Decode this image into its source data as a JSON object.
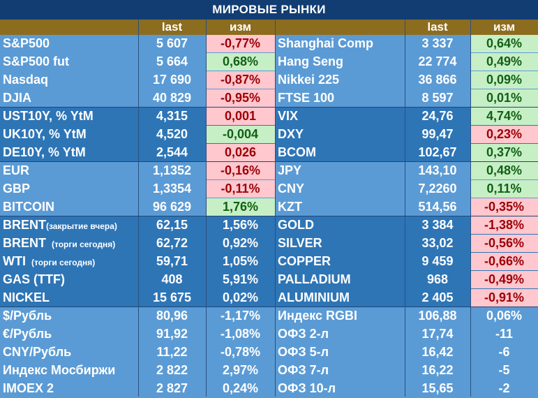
{
  "title": "МИРОВЫЕ РЫНКИ",
  "headers": {
    "last": "last",
    "change": "изм"
  },
  "rows": [
    {
      "band": "lite",
      "l": {
        "name": "S&P500",
        "last": "5 607",
        "chg": "-0,77%",
        "t": "neg"
      },
      "r": {
        "name": "Shanghai Comp",
        "last": "3 337",
        "chg": "0,64%",
        "t": "pos"
      }
    },
    {
      "band": "lite",
      "l": {
        "name": "S&P500 fut",
        "last": "5 664",
        "chg": "0,68%",
        "t": "pos"
      },
      "r": {
        "name": "Hang Seng",
        "last": "22 774",
        "chg": "0,49%",
        "t": "pos"
      }
    },
    {
      "band": "lite",
      "l": {
        "name": "Nasdaq",
        "last": "17 690",
        "chg": "-0,87%",
        "t": "neg"
      },
      "r": {
        "name": "Nikkei 225",
        "last": "36 866",
        "chg": "0,09%",
        "t": "pos"
      }
    },
    {
      "band": "lite",
      "l": {
        "name": "DJIA",
        "last": "40 829",
        "chg": "-0,95%",
        "t": "neg"
      },
      "r": {
        "name": "FTSE 100",
        "last": "8 597",
        "chg": "0,01%",
        "t": "pos"
      }
    },
    {
      "band": "dark",
      "l": {
        "name": "UST10Y, % YtM",
        "last": "4,315",
        "chg": "0,001",
        "t": "neg"
      },
      "r": {
        "name": "VIX",
        "last": "24,76",
        "chg": "4,74%",
        "t": "pos"
      }
    },
    {
      "band": "dark",
      "l": {
        "name": "UK10Y, % YtM",
        "last": "4,520",
        "chg": "-0,004",
        "t": "pos"
      },
      "r": {
        "name": "DXY",
        "last": "99,47",
        "chg": "0,23%",
        "t": "neg"
      }
    },
    {
      "band": "dark",
      "l": {
        "name": "DE10Y, % YtM",
        "last": "2,544",
        "chg": "0,026",
        "t": "neg"
      },
      "r": {
        "name": "BCOM",
        "last": "102,67",
        "chg": "0,37%",
        "t": "pos"
      }
    },
    {
      "band": "lite",
      "l": {
        "name": "EUR",
        "last": "1,1352",
        "chg": "-0,16%",
        "t": "neg"
      },
      "r": {
        "name": "JPY",
        "last": "143,10",
        "chg": "0,48%",
        "t": "pos"
      }
    },
    {
      "band": "lite",
      "l": {
        "name": "GBP",
        "last": "1,3354",
        "chg": "-0,11%",
        "t": "neg"
      },
      "r": {
        "name": "CNY",
        "last": "7,2260",
        "chg": "0,11%",
        "t": "pos"
      }
    },
    {
      "band": "lite",
      "l": {
        "name": "BITCOIN",
        "last": "96 629",
        "chg": "1,76%",
        "t": "pos"
      },
      "r": {
        "name": "KZT",
        "last": "514,56",
        "chg": "-0,35%",
        "t": "neg"
      }
    },
    {
      "band": "dark",
      "l": {
        "name": "BRENT",
        "note": "(закрытие вчера)",
        "last": "62,15",
        "chg": "1,56%",
        "t": "plain"
      },
      "r": {
        "name": "GOLD",
        "last": "3 384",
        "chg": "-1,38%",
        "t": "neg"
      }
    },
    {
      "band": "dark",
      "l": {
        "name": "BRENT",
        "note": "(торги сегодня)",
        "last": "62,72",
        "chg": "0,92%",
        "t": "plain"
      },
      "r": {
        "name": "SILVER",
        "last": "33,02",
        "chg": "-0,56%",
        "t": "neg"
      }
    },
    {
      "band": "dark",
      "l": {
        "name": "WTI",
        "note": "(торги сегодня)",
        "last": "59,71",
        "chg": "1,05%",
        "t": "plain"
      },
      "r": {
        "name": "COPPER",
        "last": "9 459",
        "chg": "-0,66%",
        "t": "neg"
      }
    },
    {
      "band": "dark",
      "l": {
        "name": "GAS (TTF)",
        "last": "408",
        "chg": "5,91%",
        "t": "plain"
      },
      "r": {
        "name": "PALLADIUM",
        "last": "968",
        "chg": "-0,49%",
        "t": "neg"
      }
    },
    {
      "band": "dark",
      "l": {
        "name": "NICKEL",
        "last": "15 675",
        "chg": "0,02%",
        "t": "plain"
      },
      "r": {
        "name": "ALUMINIUM",
        "last": "2 405",
        "chg": "-0,91%",
        "t": "neg"
      }
    },
    {
      "band": "lite",
      "l": {
        "name": "$/Рубль",
        "last": "80,96",
        "chg": "-1,17%",
        "t": "plain"
      },
      "r": {
        "name": "Индекс RGBI",
        "last": "106,88",
        "chg": "0,06%",
        "t": "plain"
      }
    },
    {
      "band": "lite",
      "l": {
        "name": "€/Рубль",
        "last": "91,92",
        "chg": "-1,08%",
        "t": "plain"
      },
      "r": {
        "name": "ОФЗ 2-л",
        "last": "17,74",
        "chg": "-11",
        "t": "plain"
      }
    },
    {
      "band": "lite",
      "l": {
        "name": "CNY/Рубль",
        "last": "11,22",
        "chg": "-0,78%",
        "t": "plain"
      },
      "r": {
        "name": "ОФЗ 5-л",
        "last": "16,42",
        "chg": "-6",
        "t": "plain"
      }
    },
    {
      "band": "lite",
      "l": {
        "name": "Индекс Мосбиржи",
        "last": "2 822",
        "chg": "2,97%",
        "t": "plain"
      },
      "r": {
        "name": "ОФЗ 7-л",
        "last": "16,22",
        "chg": "-5",
        "t": "plain"
      }
    },
    {
      "band": "lite",
      "l": {
        "name": "IMOEX 2",
        "last": "2 827",
        "chg": "0,24%",
        "t": "plain"
      },
      "r": {
        "name": "ОФЗ 10-л",
        "last": "15,65",
        "chg": "-2",
        "t": "plain"
      }
    }
  ],
  "colors": {
    "band_light": "#5b9bd5",
    "band_dark": "#2e75b6",
    "header": "#8c6d1f",
    "title": "#123d73",
    "pos_bg": "#c7efc6",
    "pos_fg": "#116014",
    "neg_bg": "#ffc7ce",
    "neg_fg": "#9c0006"
  }
}
